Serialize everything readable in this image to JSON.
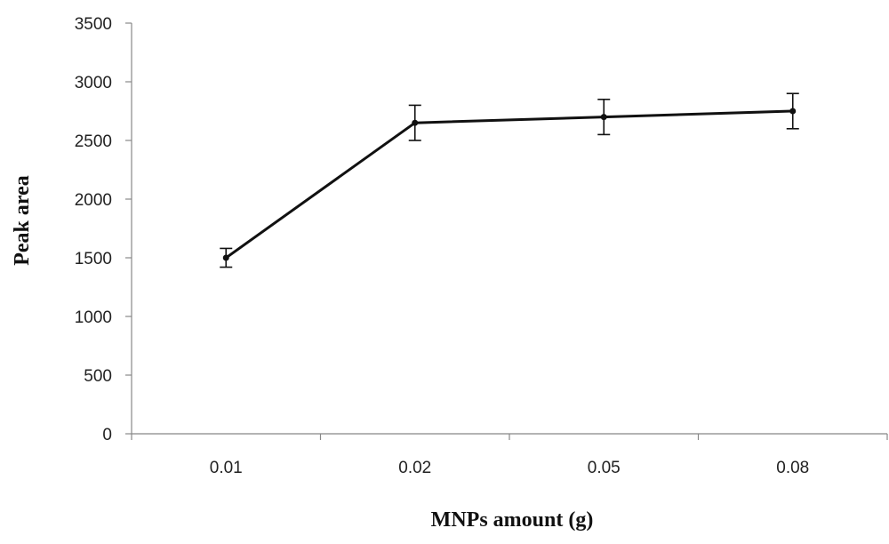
{
  "chart_data": {
    "type": "line",
    "title": "",
    "xlabel": "MNPs  amount (g)",
    "ylabel": "Peak area",
    "categories": [
      "0.01",
      "0.02",
      "0.05",
      "0.08"
    ],
    "series": [
      {
        "values": [
          1500,
          2650,
          2700,
          2750
        ],
        "error": [
          80,
          150,
          150,
          150
        ],
        "marker": "dot",
        "color": "#111111"
      }
    ],
    "ylim": [
      0,
      3500
    ],
    "yticks": [
      0,
      500,
      1000,
      1500,
      2000,
      2500,
      3000,
      3500
    ],
    "grid": false,
    "legend": "none"
  }
}
